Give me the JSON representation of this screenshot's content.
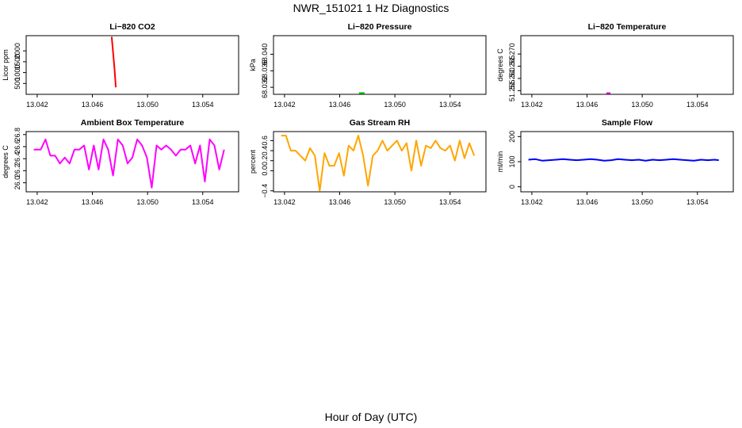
{
  "title": "NWR_151021  1 Hz Diagnostics",
  "xlabel": "Hour of Day (UTC)",
  "colors": {
    "co2": "#ff0000",
    "pressure": "#00cc00",
    "temperature": "#ff00ff",
    "box": "#ff00ff",
    "rh": "#ffa500",
    "flow": "#0000ff"
  },
  "chart_data": [
    {
      "type": "line",
      "title": "Li−820 CO2",
      "ylabel": "Licor ppm",
      "xlim": [
        13.0412,
        13.0566
      ],
      "ylim": [
        0,
        2700
      ],
      "xticks": [
        13.042,
        13.046,
        13.05,
        13.054
      ],
      "xtick_labels": [
        "13.042",
        "13.046",
        "13.050",
        "13.054"
      ],
      "yticks": [
        500,
        1000,
        1500,
        2000
      ],
      "ytick_labels": [
        "500",
        "1000",
        "1500",
        "2000"
      ],
      "color": "#ff0000",
      "x": [
        13.0474,
        13.0476,
        13.0477
      ],
      "y": [
        2650,
        1200,
        320
      ]
    },
    {
      "type": "line",
      "title": "Li−820 Pressure",
      "ylabel": "kPa",
      "xlim": [
        13.0412,
        13.0566
      ],
      "ylim": [
        68.0303,
        68.0445
      ],
      "xticks": [
        13.042,
        13.046,
        13.05,
        13.054
      ],
      "xtick_labels": [
        "13.042",
        "13.046",
        "13.050",
        "13.054"
      ],
      "yticks": [
        68.032,
        68.036,
        68.04
      ],
      "ytick_labels": [
        "68.032",
        "68.036",
        "68.040"
      ],
      "color": "#00cc00",
      "x": [
        13.0474,
        13.0478
      ],
      "y": [
        68.0306,
        68.0306
      ]
    },
    {
      "type": "line",
      "title": "Li−820 Temperature",
      "ylabel": "degrees C",
      "xlim": [
        13.0412,
        13.0566
      ],
      "ylim": [
        51.2535,
        51.2775
      ],
      "xticks": [
        13.042,
        13.046,
        13.05,
        13.054
      ],
      "xtick_labels": [
        "13.042",
        "13.046",
        "13.050",
        "13.054"
      ],
      "yticks": [
        51.255,
        51.26,
        51.265,
        51.27
      ],
      "ytick_labels": [
        "51.255",
        "51.260",
        "51.265",
        "51.270"
      ],
      "color": "#ff00ff",
      "x": [
        13.0474,
        13.0477
      ],
      "y": [
        51.254,
        51.254
      ]
    },
    {
      "type": "line",
      "title": "Ambient Box Temperature",
      "ylabel": "degrees C",
      "xlim": [
        13.0412,
        13.0566
      ],
      "ylim": [
        25.85,
        26.85
      ],
      "xticks": [
        13.042,
        13.046,
        13.05,
        13.054
      ],
      "xtick_labels": [
        "13.042",
        "13.046",
        "13.050",
        "13.054"
      ],
      "yticks": [
        26.0,
        26.2,
        26.4,
        26.6,
        26.8
      ],
      "ytick_labels": [
        "26.0",
        "26.2",
        "26.4",
        "26.6",
        "26.8"
      ],
      "color": "#ff00ff",
      "x": [
        13.04175,
        13.04225,
        13.0426,
        13.04295,
        13.0433,
        13.04365,
        13.044,
        13.04435,
        13.0447,
        13.04505,
        13.0454,
        13.04575,
        13.0461,
        13.04645,
        13.0468,
        13.04715,
        13.0475,
        13.04785,
        13.0482,
        13.04855,
        13.0489,
        13.04925,
        13.0496,
        13.04995,
        13.0503,
        13.05065,
        13.051,
        13.05135,
        13.0517,
        13.05205,
        13.0524,
        13.05275,
        13.0531,
        13.05345,
        13.0538,
        13.05415,
        13.0545,
        13.05485,
        13.0552,
        13.05555
      ],
      "y": [
        26.55,
        26.55,
        26.72,
        26.45,
        26.45,
        26.32,
        26.42,
        26.32,
        26.55,
        26.55,
        26.62,
        26.22,
        26.62,
        26.22,
        26.72,
        26.55,
        26.12,
        26.72,
        26.62,
        26.32,
        26.42,
        26.72,
        26.62,
        26.42,
        25.92,
        26.62,
        26.55,
        26.62,
        26.55,
        26.45,
        26.55,
        26.55,
        26.62,
        26.32,
        26.62,
        26.02,
        26.72,
        26.62,
        26.22,
        26.55
      ]
    },
    {
      "type": "line",
      "title": "Gas Stream RH",
      "ylabel": "percent",
      "xlim": [
        13.0412,
        13.0566
      ],
      "ylim": [
        -0.42,
        0.78
      ],
      "xticks": [
        13.042,
        13.046,
        13.05,
        13.054
      ],
      "xtick_labels": [
        "13.042",
        "13.046",
        "13.050",
        "13.054"
      ],
      "yticks": [
        -0.4,
        0.0,
        0.2,
        0.4,
        0.6
      ],
      "ytick_labels": [
        "−0.4",
        "0.0",
        "0.2",
        "0.4",
        "0.6"
      ],
      "color": "#ffa500",
      "x": [
        13.04175,
        13.0421,
        13.04245,
        13.0428,
        13.04315,
        13.0435,
        13.04385,
        13.0442,
        13.04455,
        13.0449,
        13.04525,
        13.0456,
        13.04595,
        13.0463,
        13.04665,
        13.047,
        13.04735,
        13.0477,
        13.04805,
        13.0484,
        13.04875,
        13.0491,
        13.04945,
        13.0498,
        13.05015,
        13.0505,
        13.05085,
        13.0512,
        13.05155,
        13.0519,
        13.05225,
        13.0526,
        13.05295,
        13.0533,
        13.05365,
        13.054,
        13.05435,
        13.0547,
        13.05505,
        13.0554,
        13.05575
      ],
      "y": [
        0.7,
        0.7,
        0.4,
        0.4,
        0.3,
        0.2,
        0.45,
        0.3,
        -0.4,
        0.35,
        0.1,
        0.1,
        0.35,
        -0.1,
        0.5,
        0.4,
        0.7,
        0.3,
        -0.3,
        0.3,
        0.4,
        0.6,
        0.4,
        0.5,
        0.6,
        0.4,
        0.55,
        0.0,
        0.6,
        0.1,
        0.5,
        0.45,
        0.6,
        0.45,
        0.4,
        0.5,
        0.2,
        0.6,
        0.25,
        0.55,
        0.3
      ]
    },
    {
      "type": "line",
      "title": "Sample Flow",
      "ylabel": "ml/min",
      "xlim": [
        13.0412,
        13.0566
      ],
      "ylim": [
        -20,
        220
      ],
      "xticks": [
        13.042,
        13.046,
        13.05,
        13.054
      ],
      "xtick_labels": [
        "13.042",
        "13.046",
        "13.050",
        "13.054"
      ],
      "yticks": [
        0,
        100,
        200
      ],
      "ytick_labels": [
        "0",
        "100",
        "200"
      ],
      "color": "#0000ff",
      "x": [
        13.04175,
        13.04225,
        13.04275,
        13.04325,
        13.04375,
        13.04425,
        13.04475,
        13.04525,
        13.04575,
        13.04625,
        13.04675,
        13.04725,
        13.04775,
        13.04825,
        13.04875,
        13.04925,
        13.04975,
        13.05025,
        13.05075,
        13.05125,
        13.05175,
        13.05225,
        13.05275,
        13.05325,
        13.05375,
        13.05425,
        13.05475,
        13.05525,
        13.05555
      ],
      "y": [
        108,
        110,
        104,
        106,
        108,
        110,
        108,
        106,
        108,
        110,
        108,
        104,
        106,
        110,
        108,
        106,
        108,
        104,
        108,
        106,
        108,
        110,
        108,
        106,
        104,
        108,
        106,
        108,
        106
      ]
    }
  ]
}
